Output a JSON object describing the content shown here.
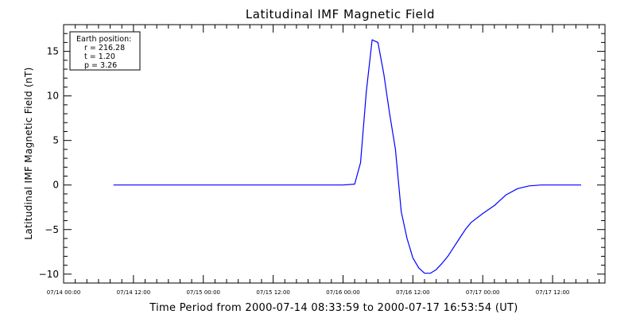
{
  "chart_data": {
    "type": "line",
    "title": "Latitudinal IMF Magnetic Field",
    "xlabel": "Time Period from 2000-07-14 08:33:59 to 2000-07-17 16:53:54 (UT)",
    "ylabel": "Latitudinal IMF Magnetic Field (nT)",
    "xlim": [
      "2000-07-14 00:00",
      "2000-07-17 21:00"
    ],
    "ylim": [
      -11,
      18
    ],
    "x_ticks": [
      {
        "t": "2000-07-14 00:00",
        "label": "07/14 00:00"
      },
      {
        "t": "2000-07-14 12:00",
        "label": "07/14 12:00"
      },
      {
        "t": "2000-07-15 00:00",
        "label": "07/15 00:00"
      },
      {
        "t": "2000-07-15 12:00",
        "label": "07/15 12:00"
      },
      {
        "t": "2000-07-16 00:00",
        "label": "07/16 00:00"
      },
      {
        "t": "2000-07-16 12:00",
        "label": "07/16 12:00"
      },
      {
        "t": "2000-07-17 00:00",
        "label": "07/17 00:00"
      },
      {
        "t": "2000-07-17 12:00",
        "label": "07/17 12:00"
      }
    ],
    "y_ticks": [
      15,
      10,
      5,
      0,
      -5,
      -10
    ],
    "y_tick_labels": [
      "15",
      "10",
      "5",
      "0",
      "−5",
      "−10"
    ],
    "grid": false,
    "line_color": "#0000ff",
    "series": [
      {
        "x": [
          "2000-07-14 08:34",
          "2000-07-15 00:00",
          "2000-07-16 00:00",
          "2000-07-16 02:00",
          "2000-07-16 03:00",
          "2000-07-16 04:00",
          "2000-07-16 05:00",
          "2000-07-16 06:00",
          "2000-07-16 07:00",
          "2000-07-16 08:00",
          "2000-07-16 09:00",
          "2000-07-16 10:00",
          "2000-07-16 11:00",
          "2000-07-16 12:00",
          "2000-07-16 13:00",
          "2000-07-16 14:00",
          "2000-07-16 15:00",
          "2000-07-16 16:00",
          "2000-07-16 17:00",
          "2000-07-16 18:00",
          "2000-07-16 19:00",
          "2000-07-16 20:00",
          "2000-07-16 21:00",
          "2000-07-16 22:00",
          "2000-07-17 00:00",
          "2000-07-17 02:00",
          "2000-07-17 04:00",
          "2000-07-17 06:00",
          "2000-07-17 08:00",
          "2000-07-17 10:00",
          "2000-07-17 12:00",
          "2000-07-17 16:54"
        ],
        "y": [
          0,
          0,
          0,
          0.1,
          2.5,
          10.5,
          16.3,
          16.0,
          12.5,
          8.0,
          4.0,
          -3.0,
          -6.0,
          -8.2,
          -9.3,
          -9.9,
          -9.9,
          -9.5,
          -8.8,
          -8.0,
          -7.0,
          -6.0,
          -5.0,
          -4.2,
          -3.2,
          -2.3,
          -1.1,
          -0.4,
          -0.1,
          0,
          0,
          0
        ]
      }
    ],
    "legend": {
      "position": "top-left",
      "lines": [
        "Earth position:",
        "r = 216.28",
        "t = 1.20",
        "p = 3.26"
      ]
    }
  }
}
